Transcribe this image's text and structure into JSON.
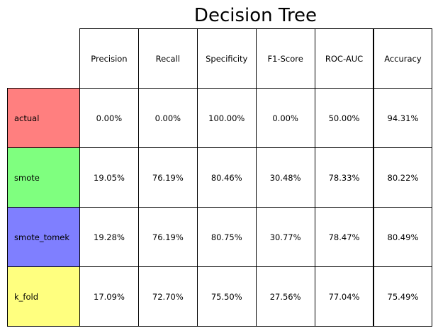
{
  "chart_data": {
    "type": "table",
    "title": "Decision Tree",
    "columns": [
      "Precision",
      "Recall",
      "Specificity",
      "F1-Score",
      "ROC-AUC",
      "Accuracy"
    ],
    "rows": [
      {
        "label": "actual",
        "color": "#ff7f7f",
        "values": [
          "0.00%",
          "0.00%",
          "100.00%",
          "0.00%",
          "50.00%",
          "94.31%"
        ]
      },
      {
        "label": "smote",
        "color": "#7fff7f",
        "values": [
          "19.05%",
          "76.19%",
          "80.46%",
          "30.48%",
          "78.33%",
          "80.22%"
        ]
      },
      {
        "label": "smote_tomek",
        "color": "#7f7fff",
        "values": [
          "19.28%",
          "76.19%",
          "80.75%",
          "30.77%",
          "78.47%",
          "80.49%"
        ]
      },
      {
        "label": "k_fold",
        "color": "#ffff7f",
        "values": [
          "17.09%",
          "72.70%",
          "75.50%",
          "27.56%",
          "77.04%",
          "75.49%"
        ]
      }
    ]
  }
}
